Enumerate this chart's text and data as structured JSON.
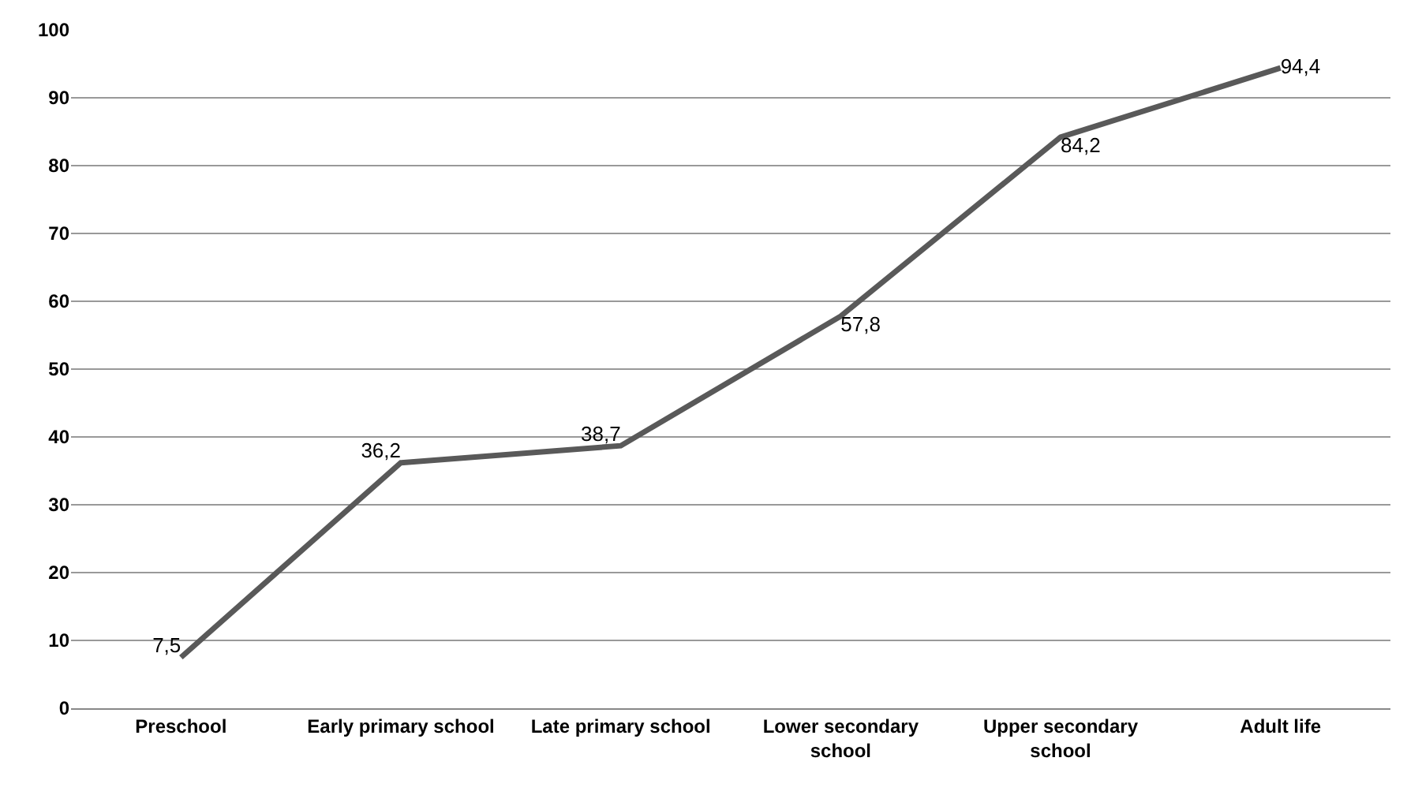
{
  "chart_data": {
    "type": "line",
    "categories": [
      "Preschool",
      "Early primary school",
      "Late primary school",
      "Lower secondary school",
      "Upper secondary school",
      "Adult life"
    ],
    "series": [
      {
        "color": "#595959",
        "values": [
          7.5,
          36.2,
          38.7,
          57.8,
          84.2,
          94.4
        ],
        "value_labels": [
          "7,5",
          "36,2",
          "38,7",
          "57,8",
          "84,2",
          "94,4"
        ]
      }
    ],
    "ylim": [
      0,
      100
    ],
    "yticks": [
      0,
      10,
      20,
      30,
      40,
      50,
      60,
      70,
      80,
      90,
      100
    ],
    "grid": "y",
    "legend": false,
    "marker": "none",
    "line_style": "solid"
  }
}
